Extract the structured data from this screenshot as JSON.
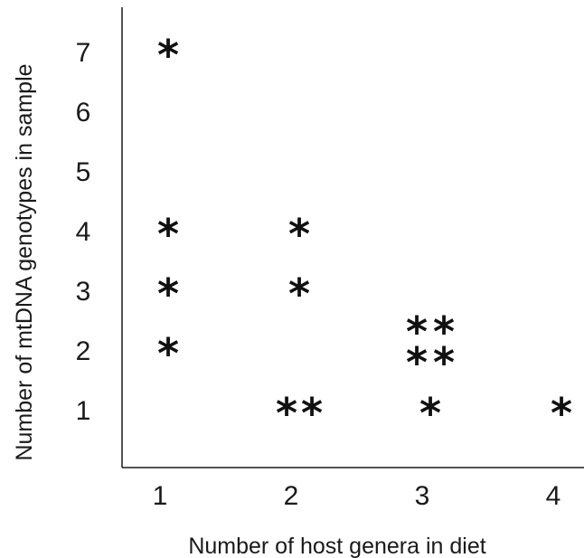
{
  "chart_data": {
    "type": "scatter",
    "title": "",
    "xlabel": "Number of host genera in diet",
    "ylabel": "Number of mtDNA genotypes in sample",
    "x_ticks": [
      "1",
      "2",
      "3",
      "4"
    ],
    "y_ticks": [
      "1",
      "2",
      "3",
      "4",
      "5",
      "6",
      "7"
    ],
    "xlim": [
      0.8,
      4.25
    ],
    "ylim": [
      0.0,
      7.9
    ],
    "grid": false,
    "marker": "*",
    "series": [
      {
        "points": [
          {
            "x": 1,
            "y": 7
          },
          {
            "x": 1,
            "y": 4
          },
          {
            "x": 1,
            "y": 3
          },
          {
            "x": 1,
            "y": 2
          },
          {
            "x": 2,
            "y": 4
          },
          {
            "x": 2,
            "y": 3
          },
          {
            "x": 2,
            "y": 1
          },
          {
            "x": 2,
            "y": 1
          },
          {
            "x": 3,
            "y": 2
          },
          {
            "x": 3,
            "y": 2
          },
          {
            "x": 3,
            "y": 2
          },
          {
            "x": 3,
            "y": 2
          },
          {
            "x": 3,
            "y": 1
          },
          {
            "x": 4,
            "y": 1
          }
        ]
      }
    ]
  }
}
